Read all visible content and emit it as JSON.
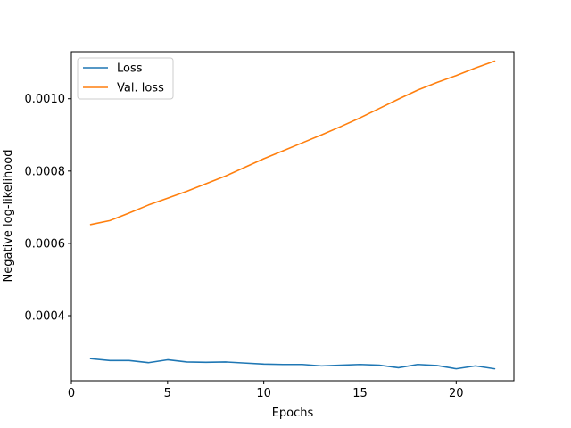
{
  "chart_data": {
    "type": "line",
    "title": "",
    "xlabel": "Epochs",
    "ylabel": "Negative log-likelihood",
    "xlim": [
      0,
      23
    ],
    "ylim": [
      0.00022,
      0.00113
    ],
    "xticks": [
      0,
      5,
      10,
      15,
      20
    ],
    "yticks": [
      0.0004,
      0.0006,
      0.0008,
      0.001
    ],
    "ytick_labels": [
      "0.0004",
      "0.0006",
      "0.0008",
      "0.0010"
    ],
    "grid": false,
    "legend_position": "top-left",
    "x": [
      1,
      2,
      3,
      4,
      5,
      6,
      7,
      8,
      9,
      10,
      11,
      12,
      13,
      14,
      15,
      16,
      17,
      18,
      19,
      20,
      21,
      22
    ],
    "series": [
      {
        "name": "Loss",
        "color": "#1f77b4",
        "values": [
          0.000281,
          0.000276,
          0.000276,
          0.00027,
          0.000278,
          0.000272,
          0.000271,
          0.000272,
          0.000269,
          0.000266,
          0.000265,
          0.000265,
          0.000261,
          0.000263,
          0.000265,
          0.000263,
          0.000256,
          0.000265,
          0.000262,
          0.000253,
          0.000261,
          0.000253
        ]
      },
      {
        "name": "Val. loss",
        "color": "#ff7f0e",
        "values": [
          0.000652,
          0.000663,
          0.000684,
          0.000706,
          0.000725,
          0.000744,
          0.000765,
          0.000786,
          0.00081,
          0.000834,
          0.000856,
          0.000878,
          0.0009,
          0.000923,
          0.000947,
          0.000973,
          0.000999,
          0.001024,
          0.001045,
          0.001064,
          0.001085,
          0.001104
        ]
      }
    ]
  }
}
